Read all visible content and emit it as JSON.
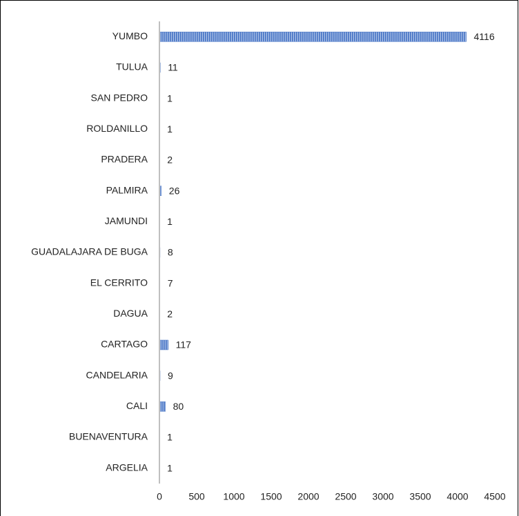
{
  "chart_data": {
    "type": "barh",
    "categories": [
      "YUMBO",
      "TULUA",
      "SAN PEDRO",
      "ROLDANILLO",
      "PRADERA",
      "PALMIRA",
      "JAMUNDI",
      "GUADALAJARA DE BUGA",
      "EL CERRITO",
      "DAGUA",
      "CARTAGO",
      "CANDELARIA",
      "CALI",
      "BUENAVENTURA",
      "ARGELIA"
    ],
    "values": [
      4116,
      11,
      1,
      1,
      2,
      26,
      1,
      8,
      7,
      2,
      117,
      9,
      80,
      1,
      1
    ],
    "color": "#4472c4",
    "xlim": [
      0,
      4500
    ],
    "xticks": [
      0,
      500,
      1000,
      1500,
      2000,
      2500,
      3000,
      3500,
      4000,
      4500
    ],
    "grid": false
  }
}
